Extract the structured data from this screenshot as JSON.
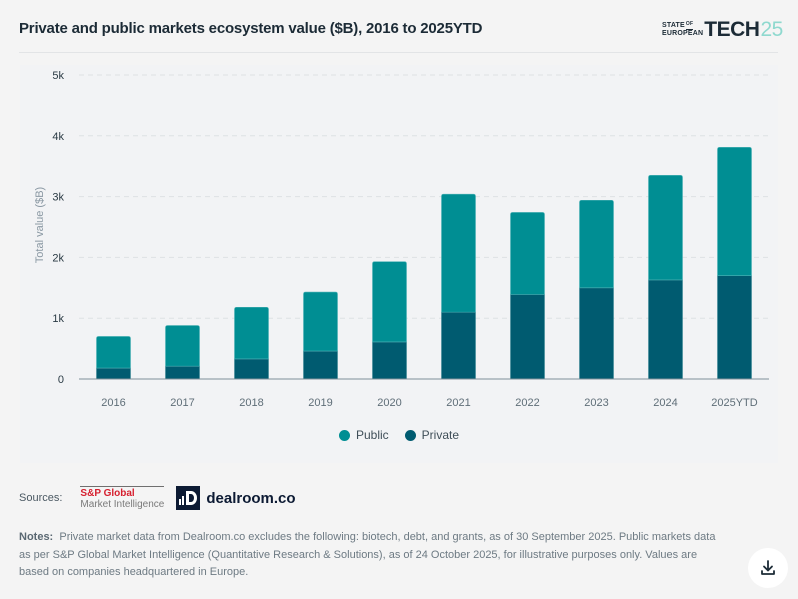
{
  "header": {
    "title": "Private and public markets ecosystem value ($B), 2016 to 2025YTD",
    "logo": {
      "line1": "STATE",
      "of": "OF",
      "line2": "EUROPEAN",
      "tech": "TECH",
      "num": "25"
    }
  },
  "chart_data": {
    "type": "bar",
    "stacked": true,
    "title": "Private and public markets ecosystem value ($B), 2016 to 2025YTD",
    "xlabel": "",
    "ylabel": "Total value ($B)",
    "ylim": [
      0,
      5000
    ],
    "yticks": [
      0,
      1000,
      2000,
      3000,
      4000,
      5000
    ],
    "ytick_labels": [
      "0",
      "1k",
      "2k",
      "3k",
      "4k",
      "5k"
    ],
    "grid": true,
    "legend_position": "bottom",
    "categories": [
      "2016",
      "2017",
      "2018",
      "2019",
      "2020",
      "2021",
      "2022",
      "2023",
      "2024",
      "2025YTD"
    ],
    "series": [
      {
        "name": "Private",
        "color": "#005b70",
        "values": [
          180,
          210,
          330,
          460,
          610,
          1100,
          1390,
          1500,
          1630,
          1700
        ]
      },
      {
        "name": "Public",
        "color": "#008e93",
        "values": [
          520,
          670,
          850,
          970,
          1320,
          1940,
          1350,
          1440,
          1720,
          2110
        ]
      }
    ],
    "totals": [
      700,
      880,
      1180,
      1430,
      1930,
      3040,
      2740,
      2940,
      3350,
      3810
    ]
  },
  "legend": [
    {
      "label": "Public",
      "color": "#008e93"
    },
    {
      "label": "Private",
      "color": "#005b70"
    }
  ],
  "sources": {
    "label": "Sources:",
    "sp_line1": "S&P Global",
    "sp_line2": "Market Intelligence",
    "dealroom_mark": "D",
    "dealroom_name": "dealroom.co"
  },
  "notes": {
    "label": "Notes:",
    "text": "Private market data from Dealroom.co excludes the following: biotech, debt, and grants, as of 30 September 2025. Public markets data as per S&P Global Market Intelligence (Quantitative Research & Solutions), as of 24 October 2025, for illustrative purposes only. Values are based on companies headquartered in Europe."
  },
  "download": {
    "icon": "download-icon"
  }
}
